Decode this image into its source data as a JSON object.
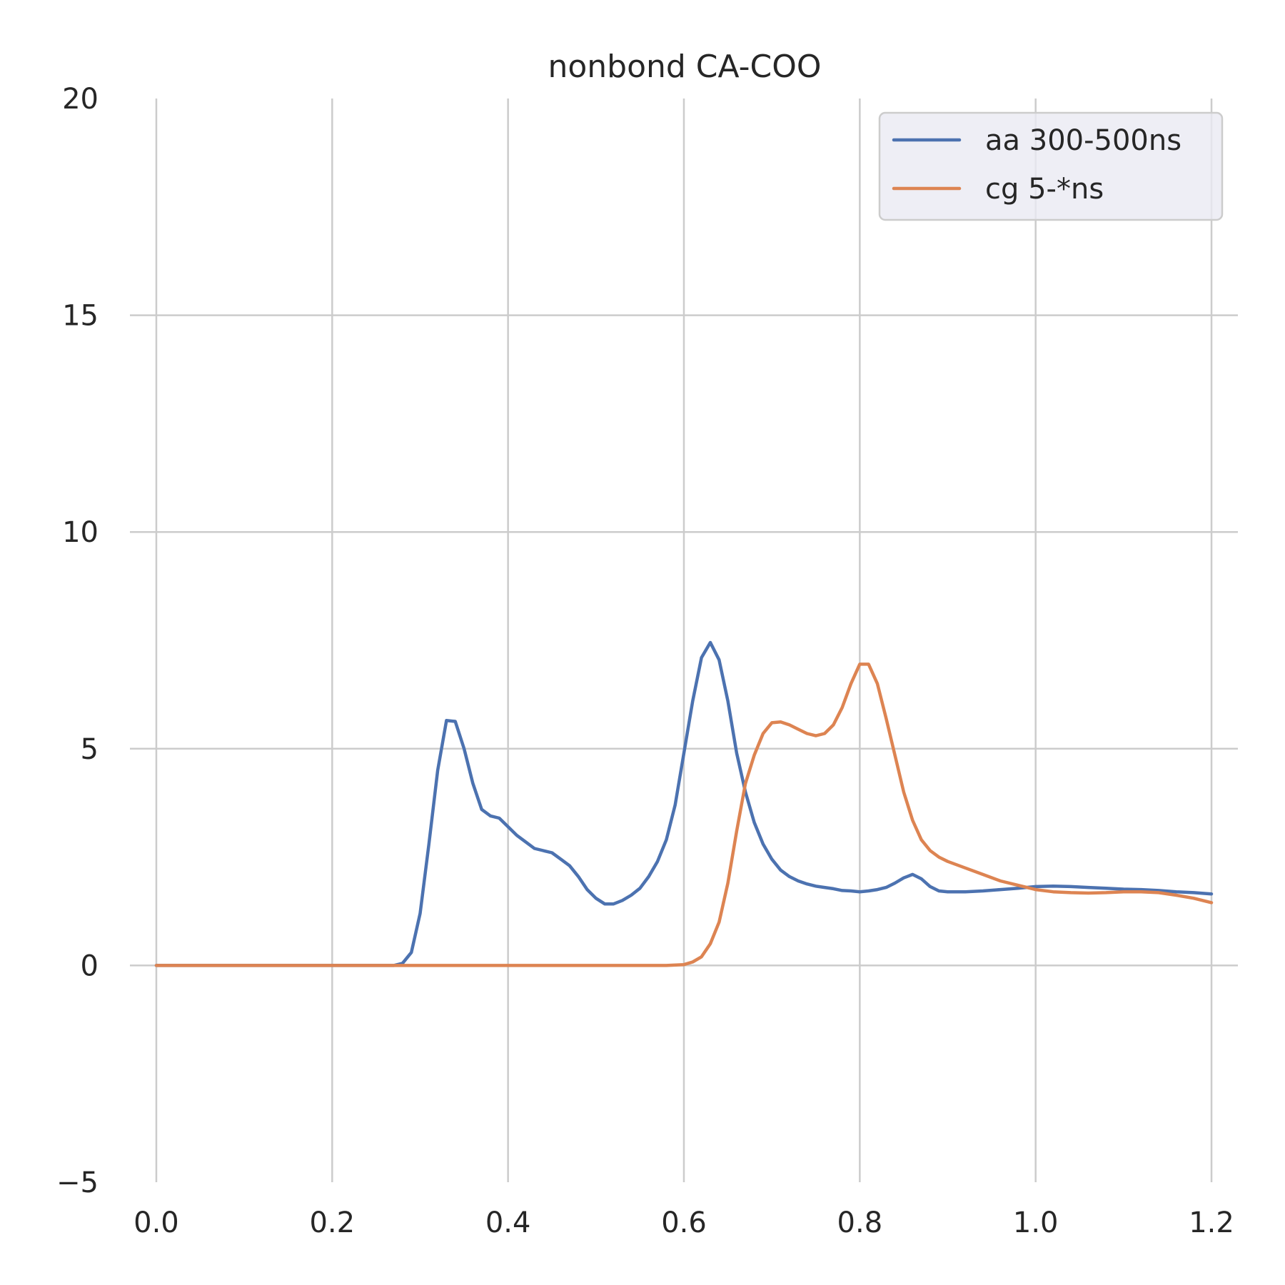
{
  "chart_data": {
    "type": "line",
    "title": "nonbond CA-COO",
    "xlabel": "",
    "ylabel": "",
    "xlim": [
      -0.03,
      1.23
    ],
    "ylim": [
      -5,
      20
    ],
    "xticks": [
      "0.0",
      "0.2",
      "0.4",
      "0.6",
      "0.8",
      "1.0",
      "1.2"
    ],
    "xtick_values": [
      0.0,
      0.2,
      0.4,
      0.6,
      0.8,
      1.0,
      1.2
    ],
    "yticks": [
      "−5",
      "0",
      "5",
      "10",
      "15",
      "20"
    ],
    "ytick_values": [
      -5,
      0,
      5,
      10,
      15,
      20
    ],
    "grid": true,
    "legend_position": "top-right",
    "series": [
      {
        "name": "aa 300-500ns",
        "color": "#4c72b0",
        "x": [
          0.0,
          0.27,
          0.28,
          0.29,
          0.3,
          0.31,
          0.32,
          0.33,
          0.34,
          0.35,
          0.36,
          0.37,
          0.38,
          0.39,
          0.4,
          0.41,
          0.42,
          0.43,
          0.44,
          0.45,
          0.46,
          0.47,
          0.48,
          0.49,
          0.5,
          0.51,
          0.52,
          0.53,
          0.54,
          0.55,
          0.56,
          0.57,
          0.58,
          0.59,
          0.6,
          0.61,
          0.62,
          0.63,
          0.64,
          0.65,
          0.66,
          0.67,
          0.68,
          0.69,
          0.7,
          0.71,
          0.72,
          0.73,
          0.74,
          0.75,
          0.76,
          0.77,
          0.78,
          0.79,
          0.8,
          0.81,
          0.82,
          0.83,
          0.84,
          0.85,
          0.86,
          0.87,
          0.88,
          0.89,
          0.9,
          0.92,
          0.94,
          0.96,
          0.98,
          1.0,
          1.02,
          1.04,
          1.06,
          1.08,
          1.1,
          1.12,
          1.14,
          1.16,
          1.18,
          1.2
        ],
        "y": [
          0.0,
          0.0,
          0.05,
          0.3,
          1.2,
          2.8,
          4.5,
          5.65,
          5.63,
          5.0,
          4.2,
          3.6,
          3.45,
          3.4,
          3.2,
          3.0,
          2.85,
          2.7,
          2.65,
          2.6,
          2.45,
          2.3,
          2.05,
          1.75,
          1.55,
          1.42,
          1.42,
          1.5,
          1.62,
          1.78,
          2.05,
          2.4,
          2.9,
          3.7,
          4.9,
          6.1,
          7.1,
          7.45,
          7.05,
          6.1,
          4.9,
          4.0,
          3.3,
          2.8,
          2.45,
          2.2,
          2.05,
          1.95,
          1.88,
          1.83,
          1.8,
          1.77,
          1.73,
          1.72,
          1.7,
          1.72,
          1.75,
          1.8,
          1.9,
          2.02,
          2.1,
          2.0,
          1.82,
          1.72,
          1.7,
          1.7,
          1.72,
          1.75,
          1.78,
          1.82,
          1.83,
          1.82,
          1.8,
          1.78,
          1.76,
          1.75,
          1.73,
          1.7,
          1.68,
          1.65
        ]
      },
      {
        "name": "cg 5-*ns",
        "color": "#dd8452",
        "x": [
          0.0,
          0.58,
          0.6,
          0.61,
          0.62,
          0.63,
          0.64,
          0.65,
          0.66,
          0.67,
          0.68,
          0.69,
          0.7,
          0.71,
          0.72,
          0.73,
          0.74,
          0.75,
          0.76,
          0.77,
          0.78,
          0.79,
          0.8,
          0.81,
          0.82,
          0.83,
          0.84,
          0.85,
          0.86,
          0.87,
          0.88,
          0.89,
          0.9,
          0.92,
          0.94,
          0.96,
          0.98,
          1.0,
          1.02,
          1.04,
          1.06,
          1.08,
          1.1,
          1.12,
          1.14,
          1.16,
          1.18,
          1.2
        ],
        "y": [
          0.0,
          0.0,
          0.02,
          0.08,
          0.2,
          0.5,
          1.0,
          1.9,
          3.1,
          4.2,
          4.85,
          5.35,
          5.6,
          5.62,
          5.55,
          5.45,
          5.35,
          5.3,
          5.35,
          5.55,
          5.95,
          6.5,
          6.95,
          6.95,
          6.5,
          5.7,
          4.85,
          4.0,
          3.35,
          2.9,
          2.65,
          2.5,
          2.4,
          2.25,
          2.1,
          1.95,
          1.85,
          1.75,
          1.7,
          1.68,
          1.67,
          1.68,
          1.7,
          1.7,
          1.68,
          1.62,
          1.55,
          1.45
        ]
      }
    ]
  }
}
